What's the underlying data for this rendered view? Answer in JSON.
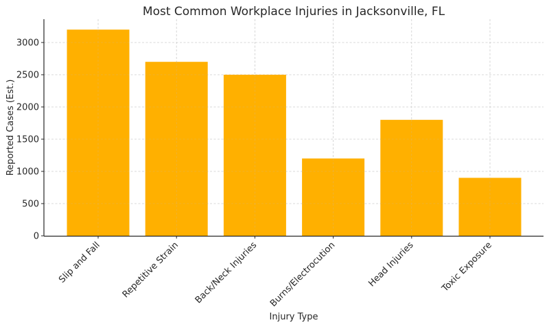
{
  "chart_data": {
    "type": "bar",
    "title": "Most Common Workplace Injuries in Jacksonville, FL",
    "xlabel": "Injury Type",
    "ylabel": "Reported Cases (Est.)",
    "categories": [
      "Slip and Fall",
      "Repetitive Strain",
      "Back/Neck Injuries",
      "Burns/Electrocution",
      "Head Injuries",
      "Toxic Exposure"
    ],
    "values": [
      3200,
      2700,
      2500,
      1200,
      1800,
      900
    ],
    "ylim": [
      0,
      3360
    ],
    "yticks": [
      0,
      500,
      1000,
      1500,
      2000,
      2500,
      3000
    ],
    "grid": true,
    "bar_color": "#FFB000",
    "legend": null
  }
}
